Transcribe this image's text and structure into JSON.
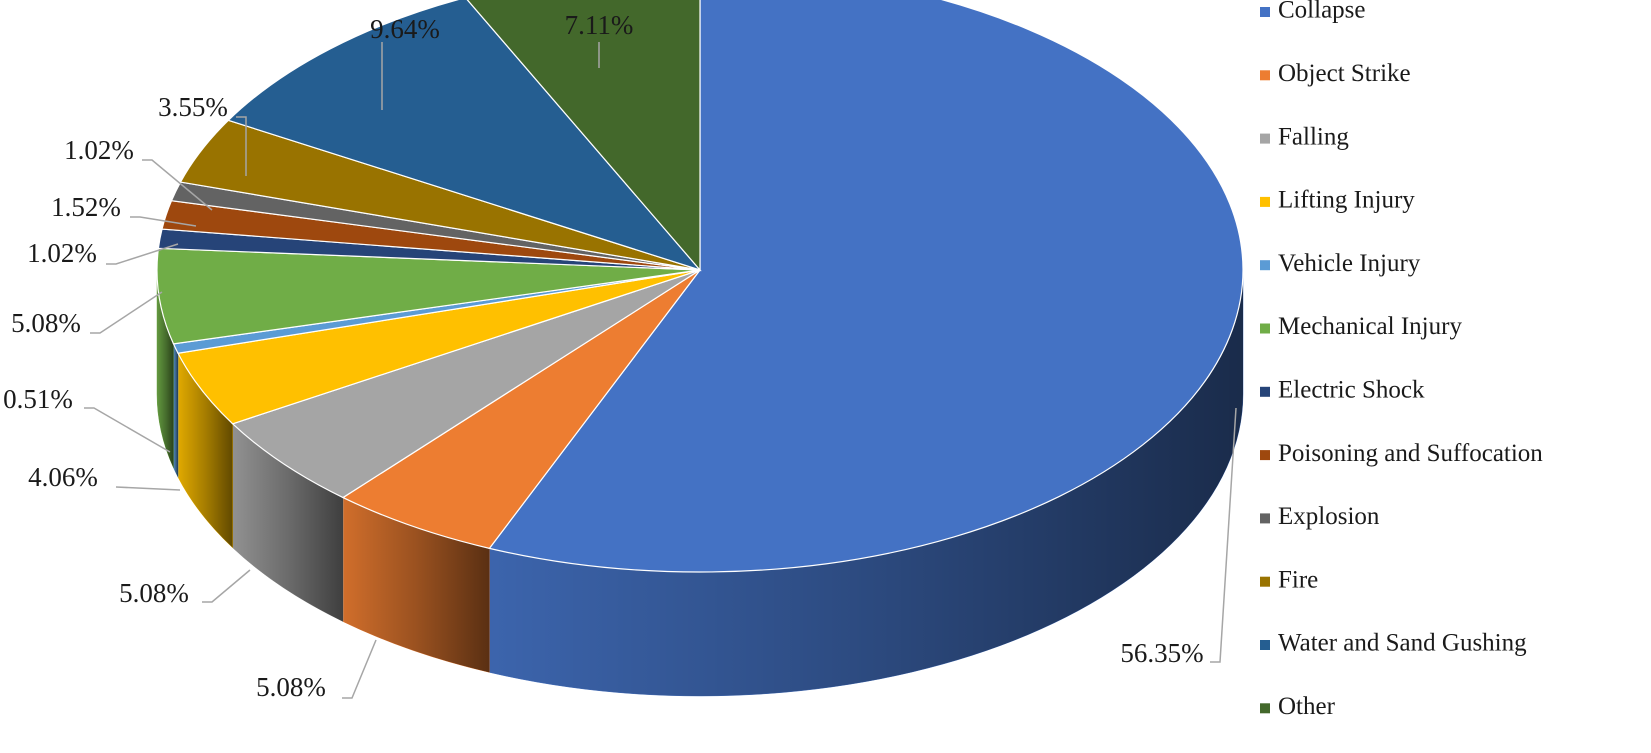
{
  "chart_data": {
    "type": "pie",
    "title": "",
    "legend_position": "right",
    "series": [
      {
        "name": "Collapse",
        "value": 56.35,
        "label": "56.35%",
        "color": "#4472C4"
      },
      {
        "name": "Object Strike",
        "value": 5.08,
        "label": "5.08%",
        "color": "#ED7D31"
      },
      {
        "name": "Falling",
        "value": 5.08,
        "label": "5.08%",
        "color": "#A5A5A5"
      },
      {
        "name": "Lifting Injury",
        "value": 4.06,
        "label": "4.06%",
        "color": "#FFC000"
      },
      {
        "name": "Vehicle Injury",
        "value": 0.51,
        "label": "0.51%",
        "color": "#5B9BD5"
      },
      {
        "name": "Mechanical Injury",
        "value": 5.08,
        "label": "5.08%",
        "color": "#70AD47"
      },
      {
        "name": "Electric Shock",
        "value": 1.02,
        "label": "1.02%",
        "color": "#264478"
      },
      {
        "name": "Poisoning and Suffocation",
        "value": 1.52,
        "label": "1.52%",
        "color": "#9E480E"
      },
      {
        "name": "Explosion",
        "value": 1.02,
        "label": "1.02%",
        "color": "#636363"
      },
      {
        "name": "Fire",
        "value": 3.55,
        "label": "3.55%",
        "color": "#997300"
      },
      {
        "name": "Water and Sand Gushing",
        "value": 9.64,
        "label": "9.64%",
        "color": "#255E91"
      },
      {
        "name": "Other",
        "value": 7.11,
        "label": "7.11%",
        "color": "#43682B"
      }
    ]
  }
}
